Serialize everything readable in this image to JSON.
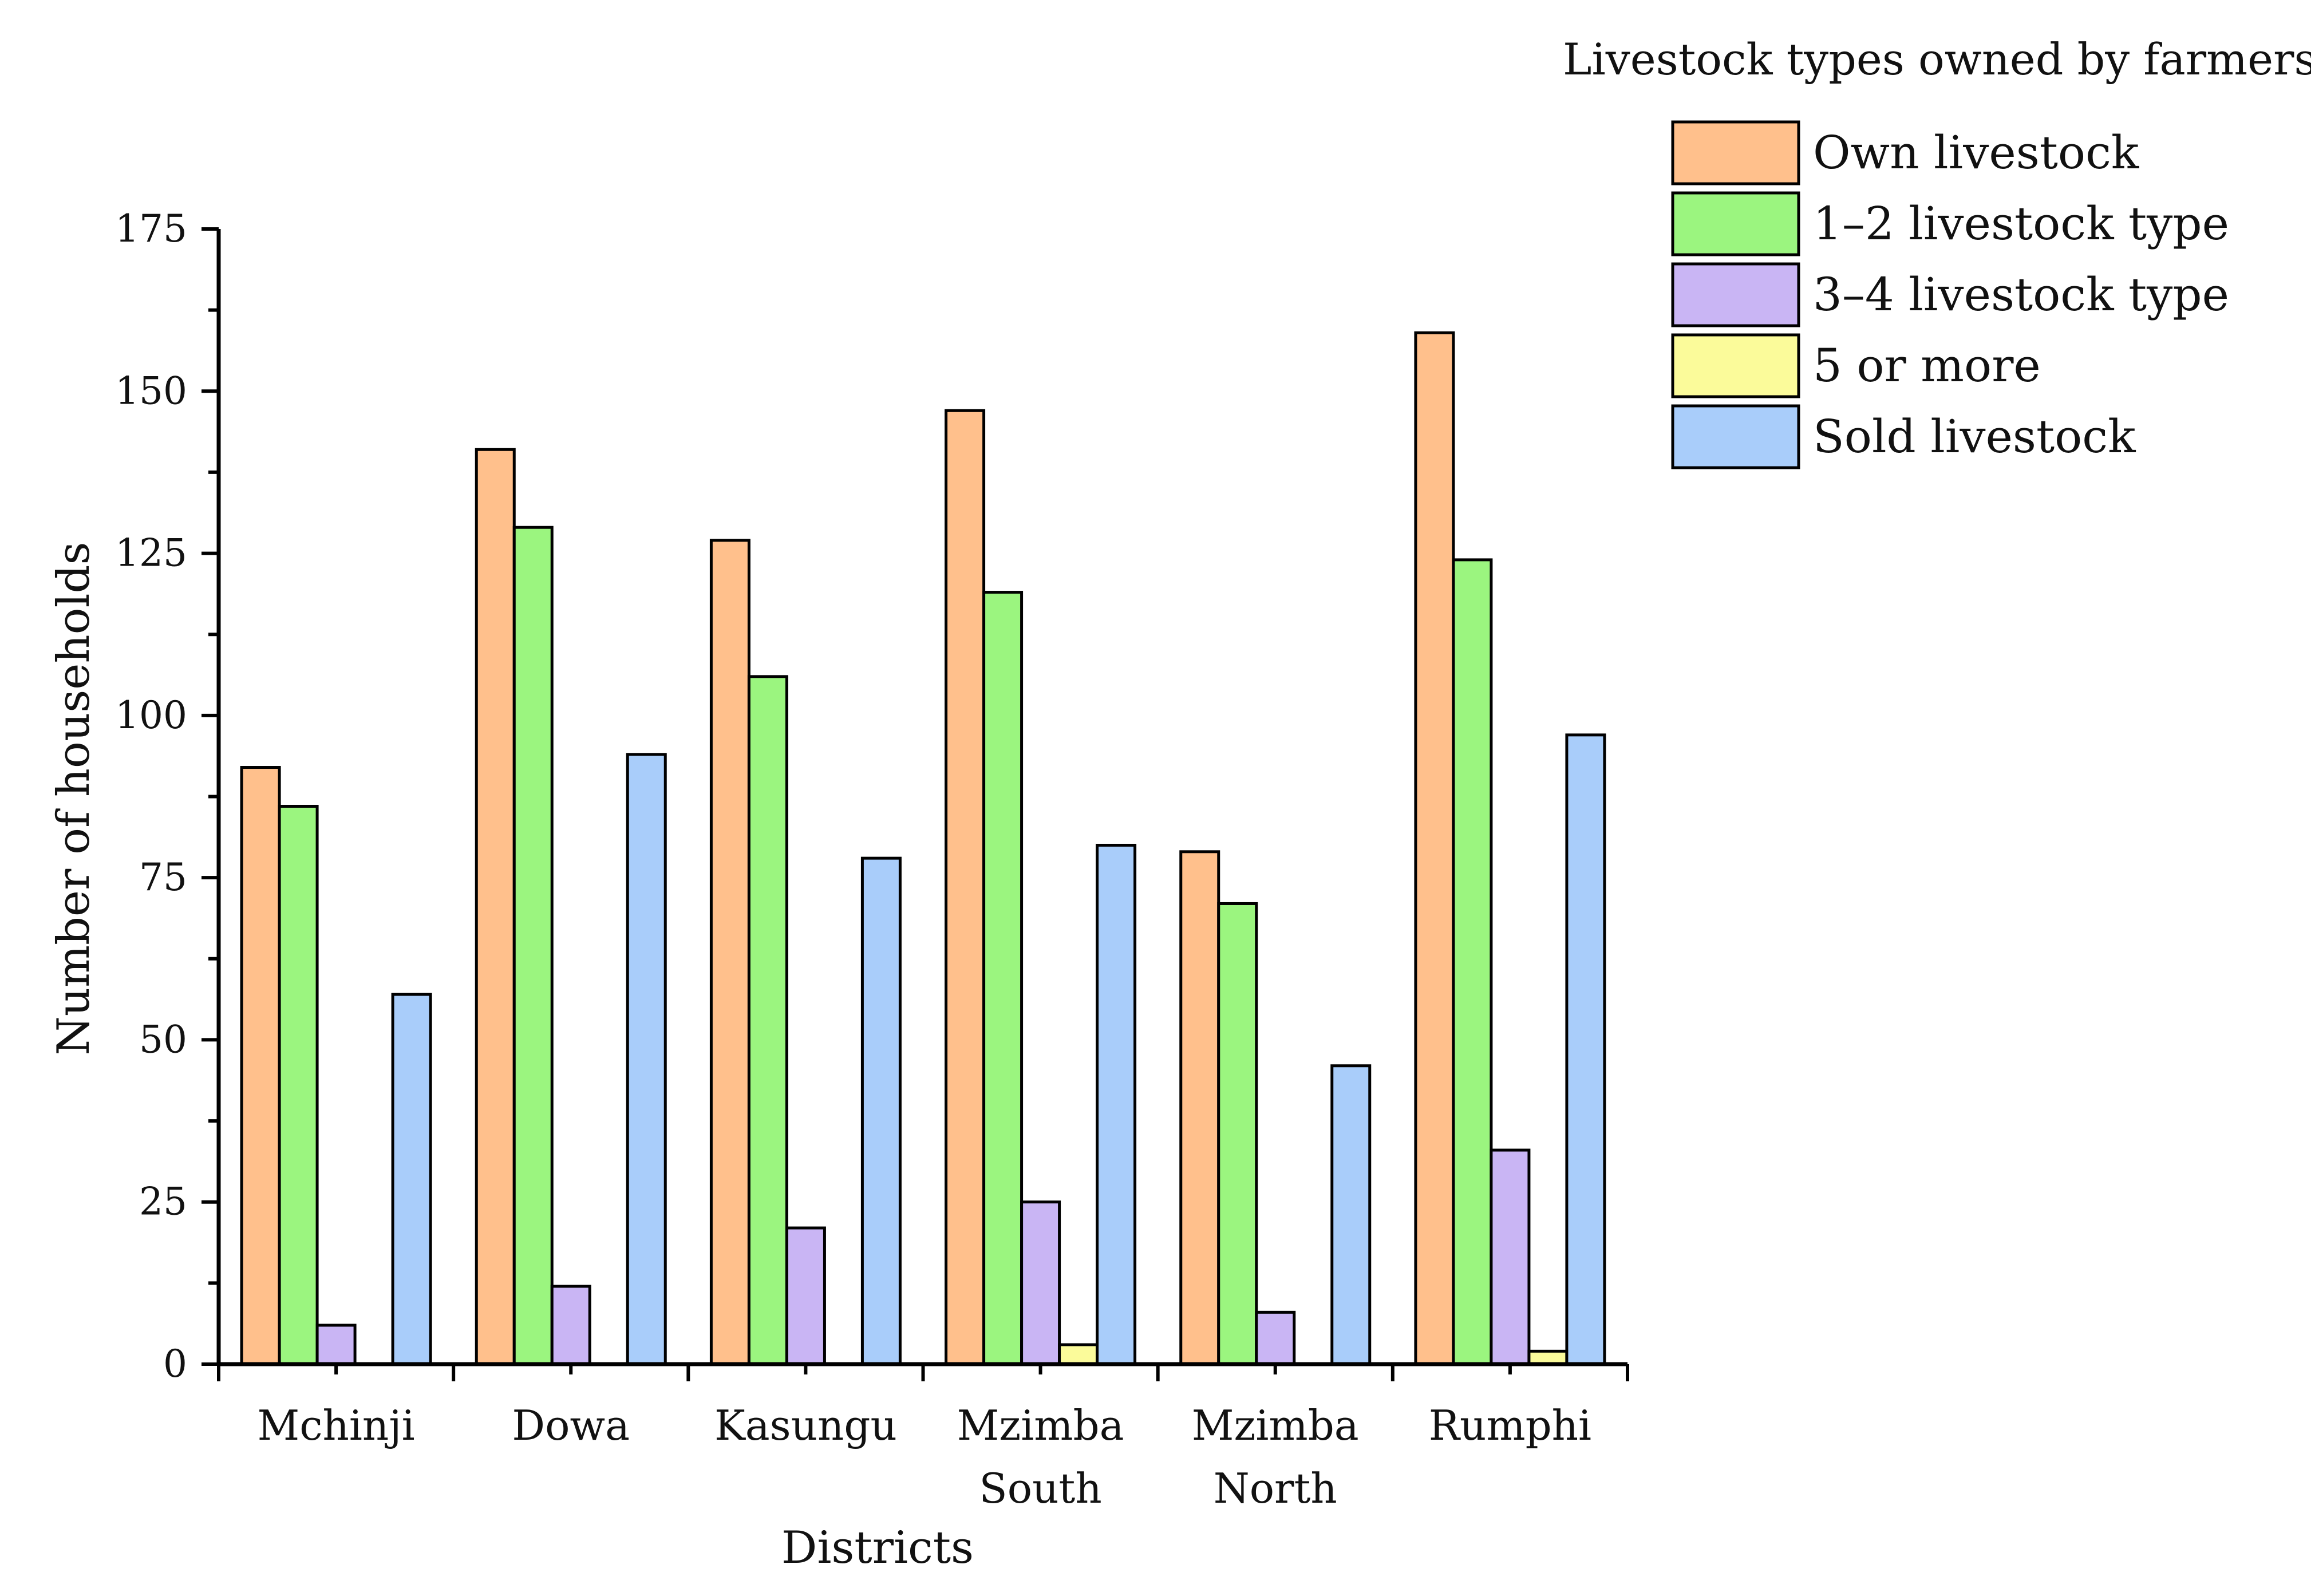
{
  "chart_data": {
    "type": "bar",
    "title": "",
    "xlabel": "Districts",
    "ylabel": "Number of households",
    "ylim": [
      0,
      175
    ],
    "yticks": [
      "0",
      "25",
      "50",
      "75",
      "100",
      "125",
      "150",
      "175"
    ],
    "grid": false,
    "legend_position": "top-right",
    "legend_title": "Livestock types owned by farmers",
    "categories": [
      [
        "Mchinji"
      ],
      [
        "Dowa"
      ],
      [
        "Kasungu"
      ],
      [
        "Mzimba",
        "South"
      ],
      [
        "Mzimba",
        "North"
      ],
      [
        "Rumphi"
      ]
    ],
    "series": [
      {
        "name": "Own livestock",
        "color": "#FFC08C",
        "values": [
          92,
          141,
          127,
          147,
          79,
          159
        ]
      },
      {
        "name": "1–2 livestock type",
        "color": "#9BF57F",
        "values": [
          86,
          129,
          106,
          119,
          71,
          124
        ]
      },
      {
        "name": "3–4 livestock type",
        "color": "#C9B5F4",
        "values": [
          6,
          12,
          21,
          25,
          8,
          33
        ]
      },
      {
        "name": "5 or more",
        "color": "#FBFB9A",
        "values": [
          0,
          0,
          0,
          3,
          0,
          2
        ]
      },
      {
        "name": "Sold livestock",
        "color": "#A9CDFA",
        "values": [
          57,
          94,
          78,
          80,
          46,
          97
        ]
      }
    ]
  }
}
